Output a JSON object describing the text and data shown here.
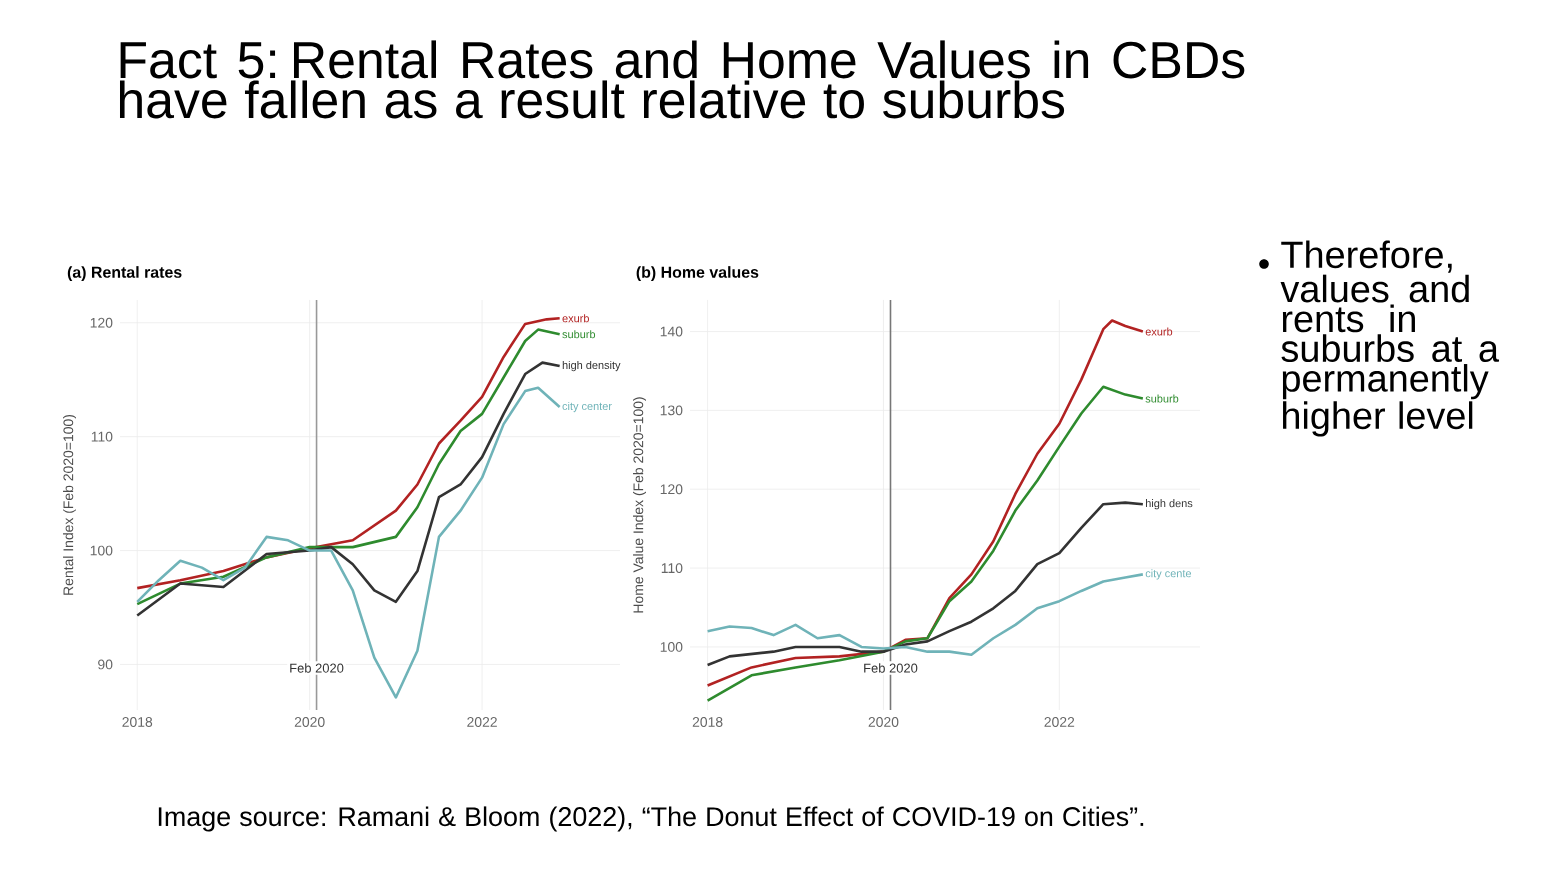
{
  "chart_data": [
    {
      "type": "other",
      "title": "Fact 5: Rental Rates and Home Values in CBDs have fallen as a result relative to suburbs",
      "annotations": [
        "Therefore, values and rents in suburbs at a permanently higher level",
        "Image source: Ramani & Bloom (2022), “The Donut Effect of COVID-19 on Cities”."
      ]
    },
    {
      "type": "line",
      "title": "(a) Rental rates",
      "ylabel": "Rental Index (Feb 2020=100)",
      "xlim": [
        2017.8,
        2023.6
      ],
      "xticks": [
        2018,
        2020,
        2022
      ],
      "ylim": [
        86,
        122
      ],
      "yticks": [
        90,
        100,
        110,
        120
      ],
      "grid": true,
      "legend": false,
      "ref_lines": [
        {
          "axis": "x",
          "value": 2020.08,
          "label": "Feb 2020",
          "color": "#999999"
        }
      ],
      "series": [
        {
          "name": "exurb",
          "color": "#b22222",
          "x": [
            2018.0,
            2018.5,
            2019.0,
            2019.5,
            2020.0,
            2020.5,
            2021.0,
            2021.25,
            2021.5,
            2021.75,
            2022.0,
            2022.25,
            2022.5,
            2022.75,
            2022.9
          ],
          "values": [
            96.7,
            97.4,
            98.2,
            99.4,
            100.2,
            100.9,
            103.5,
            105.8,
            109.4,
            111.4,
            113.5,
            117,
            119.9,
            120.3,
            120.4
          ]
        },
        {
          "name": "suburb",
          "color": "#2e8b2e",
          "x": [
            2018.0,
            2018.5,
            2019.0,
            2019.5,
            2020.0,
            2020.5,
            2021.0,
            2021.25,
            2021.5,
            2021.75,
            2022.0,
            2022.25,
            2022.5,
            2022.65,
            2022.9
          ],
          "values": [
            95.3,
            97.1,
            97.7,
            99.4,
            100.3,
            100.3,
            101.2,
            103.8,
            107.6,
            110.5,
            112,
            115.2,
            118.4,
            119.4,
            119
          ]
        },
        {
          "name": "high density",
          "color": "#333333",
          "x": [
            2018.0,
            2018.5,
            2019.0,
            2019.5,
            2020.0,
            2020.25,
            2020.5,
            2020.75,
            2021.0,
            2021.25,
            2021.5,
            2021.75,
            2022.0,
            2022.25,
            2022.5,
            2022.7,
            2022.9
          ],
          "values": [
            94.3,
            97.1,
            96.8,
            99.7,
            100,
            100.3,
            98.8,
            96.5,
            95.5,
            98.2,
            104.7,
            105.8,
            108.2,
            112,
            115.5,
            116.5,
            116.2
          ]
        },
        {
          "name": "city center",
          "color": "#6fb3b8",
          "x": [
            2018.0,
            2018.25,
            2018.5,
            2018.75,
            2019.0,
            2019.25,
            2019.5,
            2019.75,
            2020.0,
            2020.25,
            2020.5,
            2020.75,
            2021.0,
            2021.25,
            2021.5,
            2021.75,
            2022.0,
            2022.25,
            2022.5,
            2022.65,
            2022.9
          ],
          "values": [
            95.5,
            97.4,
            99.1,
            98.5,
            97.4,
            98.5,
            101.2,
            100.9,
            100,
            100,
            96.5,
            90.6,
            87.1,
            91.2,
            101.2,
            103.5,
            106.4,
            111.1,
            114,
            114.3,
            112.6
          ]
        }
      ]
    },
    {
      "type": "line",
      "title": "(b) Home values",
      "ylabel": "Home Value Index (Feb 2020=100)",
      "xlim": [
        2017.8,
        2023.6
      ],
      "xticks": [
        2018,
        2020,
        2022
      ],
      "ylim": [
        92,
        144
      ],
      "yticks": [
        100,
        110,
        120,
        130,
        140
      ],
      "grid": true,
      "legend": false,
      "ref_lines": [
        {
          "axis": "x",
          "value": 2020.08,
          "label": "Feb 2020",
          "color": "#777777"
        }
      ],
      "series": [
        {
          "name": "exurb",
          "color": "#b22222",
          "x": [
            2018.0,
            2018.5,
            2019.0,
            2019.5,
            2020.0,
            2020.25,
            2020.5,
            2020.75,
            2021.0,
            2021.25,
            2021.5,
            2021.75,
            2022.0,
            2022.25,
            2022.5,
            2022.6,
            2022.75,
            2022.95
          ],
          "values": [
            95.1,
            97.4,
            98.6,
            98.8,
            99.4,
            100.9,
            101.1,
            106.2,
            109.2,
            113.4,
            119.4,
            124.5,
            128.3,
            133.9,
            140.3,
            141.4,
            140.7,
            140
          ]
        },
        {
          "name": "suburb",
          "color": "#2e8b2e",
          "x": [
            2018.0,
            2018.5,
            2019.0,
            2019.5,
            2020.0,
            2020.25,
            2020.5,
            2020.75,
            2021.0,
            2021.25,
            2021.5,
            2021.75,
            2022.0,
            2022.25,
            2022.5,
            2022.75,
            2022.95
          ],
          "values": [
            93.2,
            96.4,
            97.4,
            98.3,
            99.4,
            100.7,
            101.1,
            105.8,
            108.3,
            112.2,
            117.3,
            121.1,
            125.4,
            129.6,
            133,
            132,
            131.5
          ]
        },
        {
          "name": "high dens",
          "color": "#333333",
          "x": [
            2018.0,
            2018.25,
            2018.75,
            2019.0,
            2019.5,
            2019.75,
            2020.0,
            2020.25,
            2020.5,
            2020.75,
            2021.0,
            2021.25,
            2021.5,
            2021.75,
            2022.0,
            2022.25,
            2022.5,
            2022.75,
            2022.95
          ],
          "values": [
            97.7,
            98.8,
            99.4,
            100,
            100,
            99.4,
            99.4,
            100.3,
            100.7,
            102,
            103.2,
            104.9,
            107.1,
            110.5,
            111.9,
            115.1,
            118.1,
            118.3,
            118.1
          ]
        },
        {
          "name": "city cente",
          "color": "#6fb3b8",
          "x": [
            2018.0,
            2018.25,
            2018.5,
            2018.75,
            2019.0,
            2019.25,
            2019.5,
            2019.75,
            2020.0,
            2020.25,
            2020.5,
            2020.75,
            2021.0,
            2021.25,
            2021.5,
            2021.75,
            2022.0,
            2022.25,
            2022.5,
            2022.75,
            2022.95
          ],
          "values": [
            102,
            102.6,
            102.4,
            101.5,
            102.8,
            101.1,
            101.5,
            100,
            99.8,
            100,
            99.4,
            99.4,
            99,
            101.1,
            102.8,
            104.9,
            105.8,
            107.1,
            108.3,
            108.8,
            109.2
          ]
        }
      ]
    }
  ]
}
